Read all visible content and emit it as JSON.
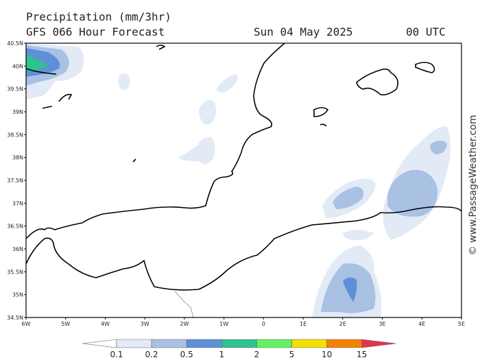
{
  "header": {
    "title": "Precipitation (mm/3hr)",
    "subtitle": "GFS 066 Hour Forecast",
    "date": "Sun 04 May 2025",
    "time": "00 UTC"
  },
  "latitude_labels": [
    "40.5N",
    "40N",
    "39.5N",
    "39N",
    "38.5N",
    "38N",
    "37.5N",
    "37N",
    "36.5N",
    "36N",
    "35.5N",
    "35N",
    "34.5N"
  ],
  "longitude_labels": [
    "6W",
    "5W",
    "4W",
    "3W",
    "2W",
    "1W",
    "0",
    "1E",
    "2E",
    "3E",
    "4E",
    "5E"
  ],
  "legend": {
    "labels": [
      "0.1",
      "0.2",
      "0.5",
      "1",
      "2",
      "5",
      "10",
      "15"
    ],
    "colors": [
      "#ffffff",
      "#e2eaf6",
      "#a9c1e3",
      "#5f8fd8",
      "#2fc18f",
      "#63f063",
      "#f2e100",
      "#f28200",
      "#e23448"
    ]
  },
  "watermark": "© www.PassageWeather.com"
}
